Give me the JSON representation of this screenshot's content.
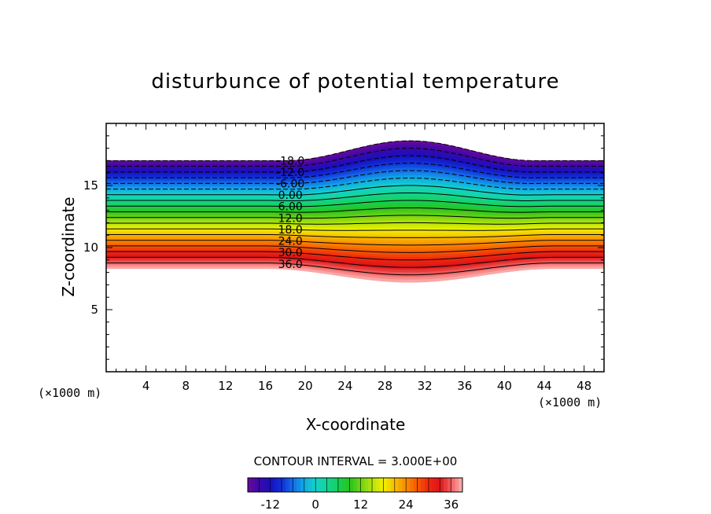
{
  "chart_data": {
    "type": "contour",
    "title": "disturbunce of potential temperature",
    "xlabel": "X-coordinate",
    "ylabel": "Z-coordinate",
    "x_unit_left": "(×1000 m)",
    "x_unit_right": "(×1000 m)",
    "xlim": [
      0,
      50
    ],
    "ylim": [
      0,
      20
    ],
    "x_ticks": [
      4,
      8,
      12,
      16,
      20,
      24,
      28,
      32,
      36,
      40,
      44,
      48
    ],
    "x_tick_labels": [
      "4",
      "8",
      "12",
      "16",
      "20",
      "24",
      "28",
      "32",
      "36",
      "40",
      "44",
      "48"
    ],
    "y_ticks": [
      5,
      10,
      15
    ],
    "y_tick_labels": [
      "5",
      "10",
      "15"
    ],
    "contour_interval_text": "CONTOUR INTERVAL = 3.000E+00",
    "contour_interval": 3.0,
    "value_range": [
      -18,
      39
    ],
    "layer": {
      "top_flat_z": 17.0,
      "top_bump_peak_z": 18.6,
      "top_bump_center_x": 30.5,
      "top_bump_halfwidth_x": 12.5,
      "bottom_flat_z": 8.3,
      "bottom_dip_min_z": 7.2,
      "bottom_dip_center_x": 30.5,
      "bottom_dip_halfwidth_x": 14.5
    },
    "contour_labels": [
      {
        "text": "-18.0",
        "value": -18
      },
      {
        "text": "-12.0",
        "value": -12
      },
      {
        "text": "-6.00",
        "value": -6
      },
      {
        "text": "0.00",
        "value": 0
      },
      {
        "text": "6.00",
        "value": 6
      },
      {
        "text": "12.0",
        "value": 12
      },
      {
        "text": "18.0",
        "value": 18
      },
      {
        "text": "24.0",
        "value": 24
      },
      {
        "text": "30.0",
        "value": 30
      },
      {
        "text": "36.0",
        "value": 36
      }
    ],
    "label_x": 18.5,
    "colorbar": {
      "ticks": [
        -12,
        0,
        12,
        24,
        36
      ],
      "tick_labels": [
        "-12",
        "0",
        "12",
        "24",
        "36"
      ],
      "colors": [
        "#6a0a9a",
        "#2a08a8",
        "#1030d8",
        "#1a78e8",
        "#10b8e0",
        "#10d8b0",
        "#14d060",
        "#30c020",
        "#a0d810",
        "#f0f000",
        "#f8b400",
        "#f87000",
        "#f02810",
        "#e01818",
        "#f89090"
      ]
    },
    "grid": false,
    "legend": "colorbar-bottom"
  }
}
